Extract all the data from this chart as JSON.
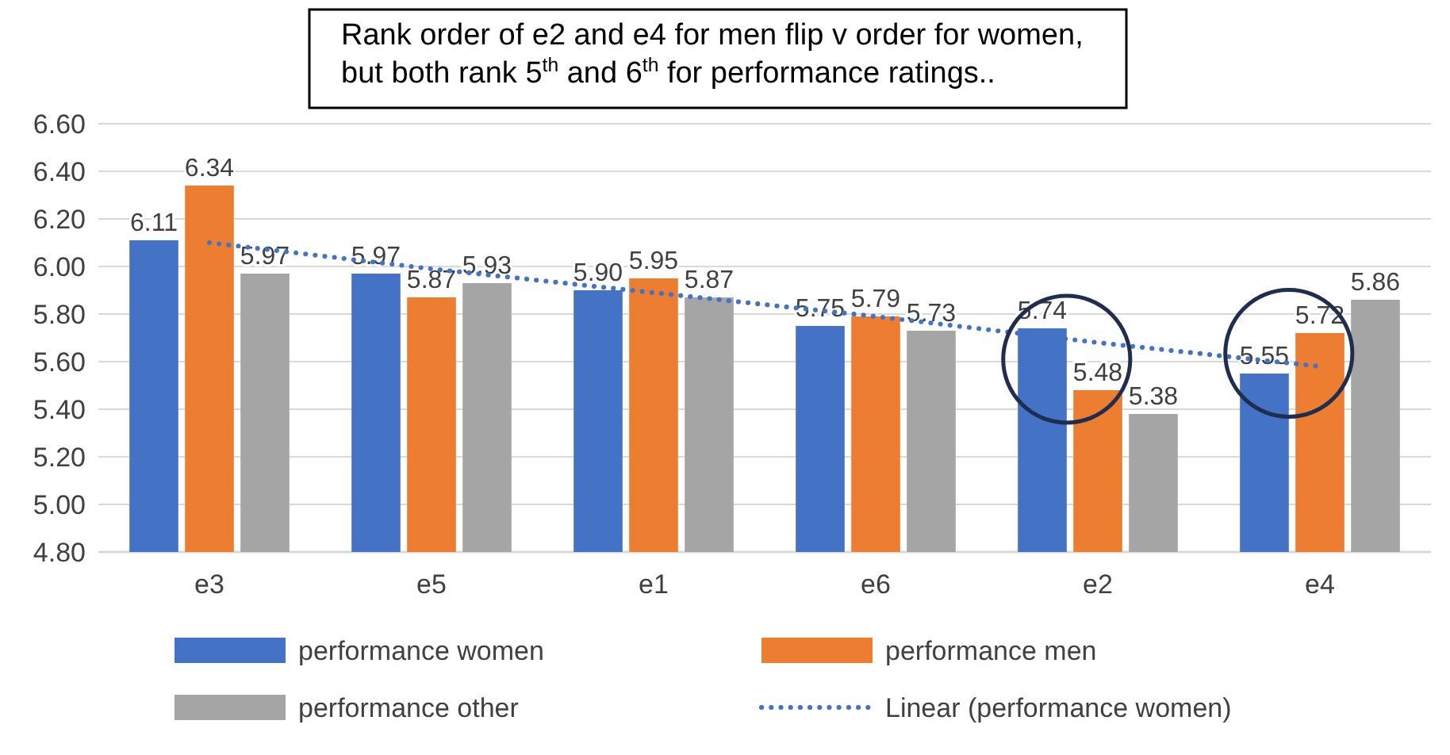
{
  "chart_data": {
    "type": "bar",
    "categories": [
      "e3",
      "e5",
      "e1",
      "e6",
      "e2",
      "e4"
    ],
    "series": [
      {
        "name": "performance women",
        "color": "#4472c4",
        "values": [
          6.11,
          5.97,
          5.9,
          5.75,
          5.74,
          5.55
        ],
        "value_labels": [
          "6.11",
          "5.97",
          "5.90",
          "5.75",
          "5.74",
          "5.55"
        ]
      },
      {
        "name": "performance men",
        "color": "#ed7d31",
        "values": [
          6.34,
          5.87,
          5.95,
          5.79,
          5.48,
          5.72
        ],
        "value_labels": [
          "6.34",
          "5.87",
          "5.95",
          "5.79",
          "5.48",
          "5.72"
        ]
      },
      {
        "name": "performance other",
        "color": "#a5a5a5",
        "values": [
          5.97,
          5.93,
          5.87,
          5.73,
          5.38,
          5.86
        ],
        "value_labels": [
          "5.97",
          "5.93",
          "5.87",
          "5.73",
          "5.38",
          "5.86"
        ]
      },
      {
        "name": "Linear (performance women)",
        "type": "line",
        "color": "#4472c4",
        "line_style": "dotted",
        "marker": "none",
        "values": [
          6.1,
          5.99,
          5.89,
          5.79,
          5.68,
          5.58
        ]
      }
    ],
    "ylim": [
      4.8,
      6.6
    ],
    "yticks": [
      {
        "value": 4.8,
        "label": "4.80"
      },
      {
        "value": 5.0,
        "label": "5.00"
      },
      {
        "value": 5.2,
        "label": "5.20"
      },
      {
        "value": 5.4,
        "label": "5.40"
      },
      {
        "value": 5.6,
        "label": "5.60"
      },
      {
        "value": 5.8,
        "label": "5.80"
      },
      {
        "value": 6.0,
        "label": "6.00"
      },
      {
        "value": 6.2,
        "label": "6.20"
      },
      {
        "value": 6.4,
        "label": "6.40"
      },
      {
        "value": 6.6,
        "label": "6.60"
      }
    ],
    "grid": "y",
    "legend": "bottom",
    "annotations": [
      "Rank order of e2 and e4 for men flip v order for women, but both rank 5$^{th}$ and 6$^{th}$ for performance ratings.."
    ]
  }
}
